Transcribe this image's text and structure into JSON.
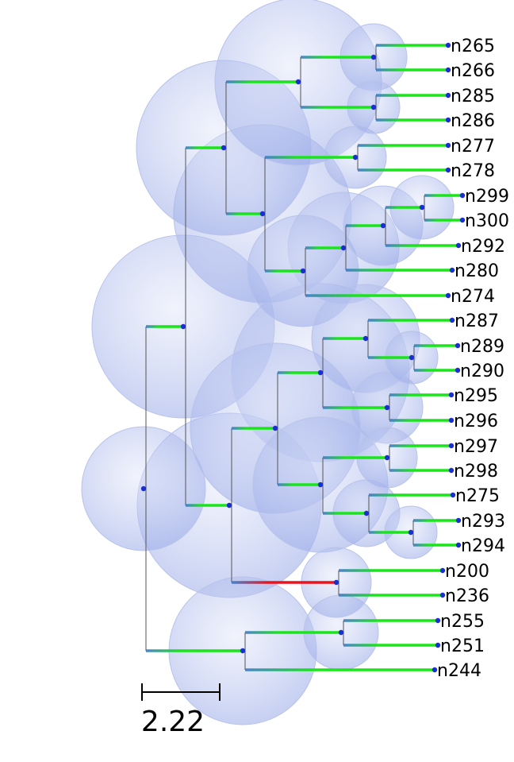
{
  "colors": {
    "branch_default": "#19e619",
    "branch_highlight": "#e8141e",
    "node_dot": "#1a2fd0",
    "bubble_fill": "#9aaae8",
    "stem": "#555555"
  },
  "scale_bar": {
    "label": "2.22"
  },
  "leaves": [
    {
      "id": "n265",
      "label": "n265"
    },
    {
      "id": "n266",
      "label": "n266"
    },
    {
      "id": "n285",
      "label": "n285"
    },
    {
      "id": "n286",
      "label": "n286"
    },
    {
      "id": "n277",
      "label": "n277"
    },
    {
      "id": "n278",
      "label": "n278"
    },
    {
      "id": "n299",
      "label": "n299"
    },
    {
      "id": "n300",
      "label": "n300"
    },
    {
      "id": "n292",
      "label": "n292"
    },
    {
      "id": "n280",
      "label": "n280"
    },
    {
      "id": "n274",
      "label": "n274"
    },
    {
      "id": "n287",
      "label": "n287"
    },
    {
      "id": "n289",
      "label": "n289"
    },
    {
      "id": "n290",
      "label": "n290"
    },
    {
      "id": "n295",
      "label": "n295"
    },
    {
      "id": "n296",
      "label": "n296"
    },
    {
      "id": "n297",
      "label": "n297"
    },
    {
      "id": "n298",
      "label": "n298"
    },
    {
      "id": "n275",
      "label": "n275"
    },
    {
      "id": "n293",
      "label": "n293"
    },
    {
      "id": "n294",
      "label": "n294"
    },
    {
      "id": "n200",
      "label": "n200"
    },
    {
      "id": "n236",
      "label": "n236"
    },
    {
      "id": "n255",
      "label": "n255"
    },
    {
      "id": "n251",
      "label": "n251"
    },
    {
      "id": "n244",
      "label": "n244"
    }
  ]
}
